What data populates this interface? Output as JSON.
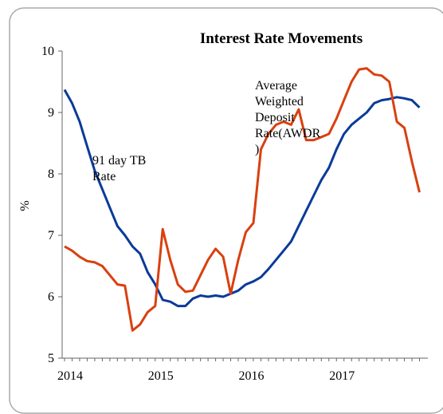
{
  "chart_data": {
    "type": "line",
    "title": "Interest Rate Movements",
    "y_label": "%",
    "categories": [
      "2014",
      null,
      null,
      null,
      null,
      null,
      null,
      null,
      null,
      null,
      null,
      null,
      "2015",
      null,
      null,
      null,
      null,
      null,
      null,
      null,
      null,
      null,
      null,
      null,
      "2016",
      null,
      null,
      null,
      null,
      null,
      null,
      null,
      null,
      null,
      null,
      null,
      "2017",
      null,
      null,
      null,
      null,
      null,
      null,
      null,
      null,
      null,
      null,
      null
    ],
    "series": [
      {
        "name": "91 day TB Rate",
        "color": "#0a3a9a",
        "values": [
          9.37,
          9.15,
          8.85,
          8.45,
          8.05,
          7.75,
          7.45,
          7.15,
          7.0,
          6.82,
          6.7,
          6.4,
          6.2,
          5.95,
          5.92,
          5.85,
          5.85,
          5.97,
          6.02,
          6.0,
          6.02,
          6.0,
          6.05,
          6.1,
          6.2,
          6.25,
          6.32,
          6.45,
          6.6,
          6.75,
          6.9,
          7.15,
          7.4,
          7.65,
          7.9,
          8.1,
          8.4,
          8.65,
          8.8,
          8.9,
          9.0,
          9.15,
          9.2,
          9.22,
          9.25,
          9.23,
          9.2,
          9.08
        ]
      },
      {
        "name": "Average Weighted Deposit Rate(AWDR )",
        "color": "#d9400f",
        "values": [
          6.82,
          6.75,
          6.65,
          6.58,
          6.56,
          6.5,
          6.35,
          6.2,
          6.18,
          5.45,
          5.55,
          5.75,
          5.85,
          7.1,
          6.6,
          6.2,
          6.08,
          6.1,
          6.35,
          6.6,
          6.78,
          6.65,
          6.05,
          6.6,
          7.05,
          7.2,
          8.4,
          8.65,
          8.8,
          8.85,
          8.8,
          9.05,
          8.55,
          8.55,
          8.6,
          8.65,
          8.9,
          9.2,
          9.5,
          9.7,
          9.72,
          9.62,
          9.6,
          9.5,
          8.85,
          8.75,
          8.2,
          7.7
        ]
      }
    ],
    "annotations": [
      {
        "lines": [
          "91 day TB",
          "Rate"
        ]
      },
      {
        "lines": [
          "Average",
          "Weighted",
          "Deposit",
          "Rate(AWDR",
          ")"
        ]
      }
    ],
    "ylim": [
      5,
      10
    ],
    "yticks": [
      5,
      6,
      7,
      8,
      9,
      10
    ],
    "grid": false
  }
}
